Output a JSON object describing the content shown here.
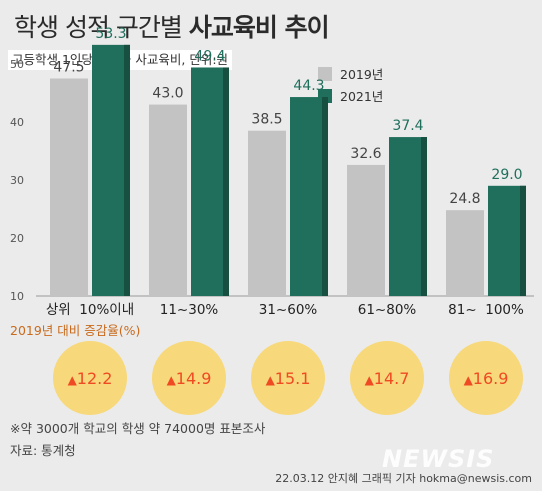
{
  "title_light": "학생 성적 구간별",
  "title_bold": "사교육비 추이",
  "subtitle": "고등학생 1인당 월평균 사교육비, 단위:원",
  "chart_data": {
    "type": "bar",
    "categories": [
      "상위  10%이내",
      "11~30%",
      "31~60%",
      "61~80%",
      "81~  100%"
    ],
    "series": [
      {
        "name": "2019년",
        "color": "#c3c3c3",
        "values": [
          47.5,
          43.0,
          38.5,
          32.6,
          24.8
        ],
        "labels": [
          "47.5",
          "43.0",
          "38.5",
          "32.6",
          "24.8"
        ]
      },
      {
        "name": "2021년",
        "color": "#1f6f5c",
        "values": [
          53.3,
          49.4,
          44.3,
          37.4,
          29.0
        ],
        "labels": [
          "53.3",
          "49.4",
          "44.3",
          "37.4",
          "29.0"
        ]
      }
    ],
    "ylim": [
      10,
      55
    ],
    "yticks": [
      "10",
      "20",
      "30",
      "40",
      "50"
    ],
    "legend_position": "top-right"
  },
  "change_label": "2019년 대비 증감율(%)",
  "changes": [
    "12.2",
    "14.9",
    "15.1",
    "14.7",
    "16.9"
  ],
  "change_symbol": "▲",
  "change_color": "#ef4a23",
  "circle_color": "#f7d87a",
  "note": "※약 3000개 학교의 학생 약 74000명 표본조사",
  "source": "자료: 통계청",
  "watermark": "NEWSIS",
  "credit": "22.03.12 안지혜 그래픽 기자  hokma@newsis.com"
}
